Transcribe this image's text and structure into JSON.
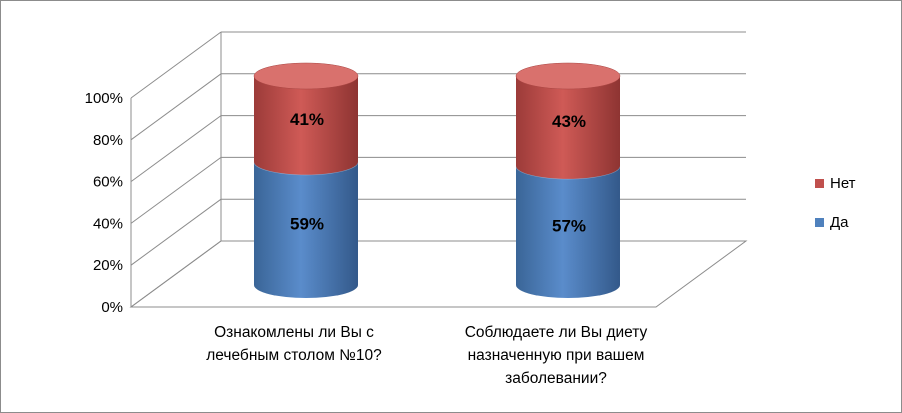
{
  "chart_data": {
    "type": "bar",
    "stacked": true,
    "percent_stacked": true,
    "three_d": true,
    "bar_shape": "cylinder",
    "categories": [
      [
        "Ознакомлены ли Вы с",
        "лечебным столом №10?"
      ],
      [
        "Соблюдаете ли Вы диету",
        "назначенную при вашем",
        "заболевании?"
      ]
    ],
    "series": [
      {
        "name": "Да",
        "values": [
          59,
          57
        ],
        "labels": [
          "59%",
          "57%"
        ],
        "color": "#4f81bd"
      },
      {
        "name": "Нет",
        "values": [
          41,
          43
        ],
        "labels": [
          "41%",
          "43%"
        ],
        "color": "#c0504d"
      }
    ],
    "y_ticks": [
      "0%",
      "20%",
      "40%",
      "60%",
      "80%",
      "100%"
    ],
    "ylim": [
      0,
      100
    ],
    "grid": true,
    "legend": {
      "position": "right",
      "order": [
        "Нет",
        "Да"
      ]
    }
  }
}
